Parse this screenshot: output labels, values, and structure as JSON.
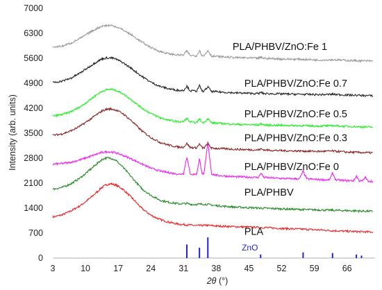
{
  "chart_data": {
    "type": "line",
    "title": "",
    "xlabel_symbol": "2θ",
    "xlabel_unit": " (°)",
    "ylabel": "Intensity (arb. units)",
    "xlim": [
      3,
      72
    ],
    "ylim": [
      0,
      7000
    ],
    "x_ticks": [
      "3",
      "10",
      "17",
      "24",
      "31",
      "38",
      "45",
      "52",
      "59",
      "66"
    ],
    "y_ticks": [
      "0",
      "700",
      "1400",
      "2100",
      "2800",
      "3500",
      "4200",
      "4900",
      "5600",
      "6300",
      "7000"
    ],
    "series": [
      {
        "name": "PLA",
        "color": "#ee2222",
        "points": [
          [
            3,
            1150
          ],
          [
            5,
            1210
          ],
          [
            7,
            1330
          ],
          [
            9,
            1480
          ],
          [
            11,
            1680
          ],
          [
            12.5,
            1860
          ],
          [
            13.5,
            1980
          ],
          [
            14.5,
            2060
          ],
          [
            15.5,
            2080
          ],
          [
            16.5,
            2050
          ],
          [
            18,
            1930
          ],
          [
            20,
            1680
          ],
          [
            22,
            1400
          ],
          [
            24,
            1200
          ],
          [
            26,
            1080
          ],
          [
            28,
            1000
          ],
          [
            30,
            950
          ],
          [
            31.7,
            930
          ],
          [
            33,
            920
          ],
          [
            34.3,
            910
          ],
          [
            35.7,
            920
          ],
          [
            38,
            900
          ],
          [
            42,
            880
          ],
          [
            47.5,
            860
          ],
          [
            52,
            830
          ],
          [
            56.5,
            810
          ],
          [
            60,
            790
          ],
          [
            62.8,
            770
          ],
          [
            66,
            750
          ],
          [
            68.5,
            740
          ],
          [
            71.5,
            730
          ]
        ]
      },
      {
        "name": "PLA/PHBV",
        "color": "#228822",
        "points": [
          [
            3,
            1930
          ],
          [
            5,
            1980
          ],
          [
            7,
            2090
          ],
          [
            9,
            2260
          ],
          [
            11,
            2480
          ],
          [
            12.5,
            2650
          ],
          [
            13.5,
            2760
          ],
          [
            14.5,
            2810
          ],
          [
            15.5,
            2800
          ],
          [
            16.5,
            2740
          ],
          [
            18,
            2550
          ],
          [
            20,
            2250
          ],
          [
            22,
            1950
          ],
          [
            24,
            1760
          ],
          [
            26,
            1620
          ],
          [
            28,
            1560
          ],
          [
            30,
            1520
          ],
          [
            31.7,
            1530
          ],
          [
            33,
            1500
          ],
          [
            34.3,
            1510
          ],
          [
            35.7,
            1510
          ],
          [
            38,
            1470
          ],
          [
            42,
            1430
          ],
          [
            47.5,
            1400
          ],
          [
            52,
            1380
          ],
          [
            56.5,
            1360
          ],
          [
            60,
            1350
          ],
          [
            62.8,
            1340
          ],
          [
            66,
            1330
          ],
          [
            68.5,
            1320
          ],
          [
            71.5,
            1310
          ]
        ]
      },
      {
        "name": "PLA/PHBV/ZnO:Fe 0",
        "color": "#ee22ee",
        "points": [
          [
            3,
            2630
          ],
          [
            5,
            2650
          ],
          [
            7,
            2690
          ],
          [
            9,
            2760
          ],
          [
            11,
            2850
          ],
          [
            12.5,
            2920
          ],
          [
            13.5,
            2960
          ],
          [
            14.5,
            2980
          ],
          [
            15.5,
            2975
          ],
          [
            16.5,
            2950
          ],
          [
            18,
            2880
          ],
          [
            20,
            2770
          ],
          [
            22,
            2640
          ],
          [
            24,
            2520
          ],
          [
            26,
            2440
          ],
          [
            28,
            2390
          ],
          [
            30,
            2350
          ],
          [
            31,
            2370
          ],
          [
            31.7,
            2840
          ],
          [
            32.4,
            2370
          ],
          [
            33,
            2340
          ],
          [
            33.8,
            2360
          ],
          [
            34.4,
            2780
          ],
          [
            35.0,
            2360
          ],
          [
            35.4,
            2370
          ],
          [
            36.2,
            3250
          ],
          [
            37.0,
            2360
          ],
          [
            38,
            2320
          ],
          [
            42,
            2280
          ],
          [
            47,
            2260
          ],
          [
            47.6,
            2380
          ],
          [
            48.2,
            2260
          ],
          [
            52,
            2230
          ],
          [
            55.8,
            2220
          ],
          [
            56.6,
            2430
          ],
          [
            57.4,
            2220
          ],
          [
            60,
            2200
          ],
          [
            62.2,
            2190
          ],
          [
            62.9,
            2380
          ],
          [
            63.6,
            2190
          ],
          [
            66,
            2170
          ],
          [
            67.4,
            2170
          ],
          [
            68.0,
            2300
          ],
          [
            68.6,
            2170
          ],
          [
            69.3,
            2160
          ],
          [
            69.9,
            2260
          ],
          [
            70.5,
            2160
          ],
          [
            71.5,
            2150
          ]
        ]
      },
      {
        "name": "PLA/PHBV/ZnO:Fe 0.3",
        "color": "#882222",
        "points": [
          [
            3,
            3440
          ],
          [
            5,
            3480
          ],
          [
            7,
            3570
          ],
          [
            9,
            3710
          ],
          [
            11,
            3890
          ],
          [
            12.5,
            4030
          ],
          [
            13.5,
            4120
          ],
          [
            14.5,
            4170
          ],
          [
            15.5,
            4180
          ],
          [
            16.5,
            4150
          ],
          [
            18,
            4050
          ],
          [
            20,
            3830
          ],
          [
            22,
            3570
          ],
          [
            24,
            3380
          ],
          [
            26,
            3240
          ],
          [
            28,
            3160
          ],
          [
            30,
            3110
          ],
          [
            31,
            3110
          ],
          [
            31.7,
            3220
          ],
          [
            32.4,
            3100
          ],
          [
            33.8,
            3090
          ],
          [
            34.4,
            3200
          ],
          [
            35.0,
            3090
          ],
          [
            35.4,
            3090
          ],
          [
            36.2,
            3210
          ],
          [
            37.0,
            3080
          ],
          [
            42,
            3050
          ],
          [
            47,
            3030
          ],
          [
            47.6,
            3060
          ],
          [
            48.2,
            3030
          ],
          [
            52,
            3010
          ],
          [
            56.6,
            3000
          ],
          [
            60,
            2990
          ],
          [
            62.9,
            3000
          ],
          [
            66,
            2970
          ],
          [
            71.5,
            2950
          ]
        ]
      },
      {
        "name": "PLA/PHBV/ZnO:Fe 0.5",
        "color": "#22ee22",
        "points": [
          [
            3,
            3980
          ],
          [
            5,
            4020
          ],
          [
            7,
            4110
          ],
          [
            9,
            4250
          ],
          [
            11,
            4440
          ],
          [
            12.5,
            4590
          ],
          [
            13.5,
            4670
          ],
          [
            14.5,
            4720
          ],
          [
            15.5,
            4730
          ],
          [
            16.5,
            4700
          ],
          [
            18,
            4610
          ],
          [
            20,
            4420
          ],
          [
            22,
            4210
          ],
          [
            24,
            4050
          ],
          [
            26,
            3930
          ],
          [
            28,
            3860
          ],
          [
            30,
            3820
          ],
          [
            31,
            3820
          ],
          [
            31.7,
            3920
          ],
          [
            32.4,
            3810
          ],
          [
            33.8,
            3800
          ],
          [
            34.4,
            3900
          ],
          [
            35.0,
            3800
          ],
          [
            35.4,
            3800
          ],
          [
            36.2,
            3910
          ],
          [
            37.0,
            3790
          ],
          [
            42,
            3750
          ],
          [
            47,
            3730
          ],
          [
            47.6,
            3760
          ],
          [
            48.2,
            3730
          ],
          [
            52,
            3720
          ],
          [
            56.6,
            3710
          ],
          [
            60,
            3700
          ],
          [
            62.9,
            3710
          ],
          [
            66,
            3690
          ],
          [
            71.5,
            3670
          ]
        ]
      },
      {
        "name": "PLA/PHBV/ZnO:Fe 0.7",
        "color": "#222222",
        "points": [
          [
            3,
            4920
          ],
          [
            5,
            4960
          ],
          [
            7,
            5050
          ],
          [
            9,
            5200
          ],
          [
            11,
            5380
          ],
          [
            12.5,
            5510
          ],
          [
            13.5,
            5580
          ],
          [
            14.5,
            5610
          ],
          [
            15.5,
            5610
          ],
          [
            16.5,
            5580
          ],
          [
            18,
            5480
          ],
          [
            20,
            5300
          ],
          [
            22,
            5100
          ],
          [
            24,
            4930
          ],
          [
            26,
            4810
          ],
          [
            28,
            4740
          ],
          [
            30,
            4700
          ],
          [
            31,
            4700
          ],
          [
            31.7,
            4820
          ],
          [
            32.4,
            4690
          ],
          [
            33.8,
            4680
          ],
          [
            34.4,
            4830
          ],
          [
            35.0,
            4680
          ],
          [
            35.4,
            4680
          ],
          [
            36.2,
            4800
          ],
          [
            37.0,
            4670
          ],
          [
            42,
            4630
          ],
          [
            47,
            4610
          ],
          [
            47.6,
            4640
          ],
          [
            48.2,
            4610
          ],
          [
            52,
            4600
          ],
          [
            56.6,
            4590
          ],
          [
            60,
            4580
          ],
          [
            62.9,
            4590
          ],
          [
            66,
            4570
          ],
          [
            71.5,
            4550
          ]
        ]
      },
      {
        "name": "PLA/PHBV/ZnO:Fe 1",
        "color": "#999999",
        "points": [
          [
            3,
            5910
          ],
          [
            5,
            5940
          ],
          [
            7,
            6030
          ],
          [
            9,
            6170
          ],
          [
            11,
            6330
          ],
          [
            12.5,
            6440
          ],
          [
            13.5,
            6500
          ],
          [
            14.5,
            6520
          ],
          [
            15.5,
            6520
          ],
          [
            16.5,
            6490
          ],
          [
            18,
            6400
          ],
          [
            20,
            6240
          ],
          [
            22,
            6060
          ],
          [
            24,
            5900
          ],
          [
            26,
            5790
          ],
          [
            28,
            5720
          ],
          [
            30,
            5690
          ],
          [
            31,
            5690
          ],
          [
            31.7,
            5810
          ],
          [
            32.4,
            5680
          ],
          [
            33.8,
            5670
          ],
          [
            34.4,
            5820
          ],
          [
            35.0,
            5670
          ],
          [
            35.4,
            5670
          ],
          [
            36.2,
            5820
          ],
          [
            37.0,
            5660
          ],
          [
            42,
            5620
          ],
          [
            47,
            5600
          ],
          [
            47.6,
            5630
          ],
          [
            48.2,
            5600
          ],
          [
            52,
            5580
          ],
          [
            56.6,
            5570
          ],
          [
            60,
            5550
          ],
          [
            62.9,
            5560
          ],
          [
            66,
            5540
          ],
          [
            71.5,
            5520
          ]
        ]
      }
    ],
    "reference": {
      "name": "ZnO",
      "color": "#2222dd",
      "lines": [
        [
          31.7,
          380
        ],
        [
          34.4,
          290
        ],
        [
          36.2,
          580
        ],
        [
          47.5,
          100
        ],
        [
          56.6,
          160
        ],
        [
          62.9,
          140
        ],
        [
          68.0,
          100
        ],
        [
          69.1,
          70
        ]
      ]
    },
    "grid": false,
    "legend": "inline labels"
  }
}
